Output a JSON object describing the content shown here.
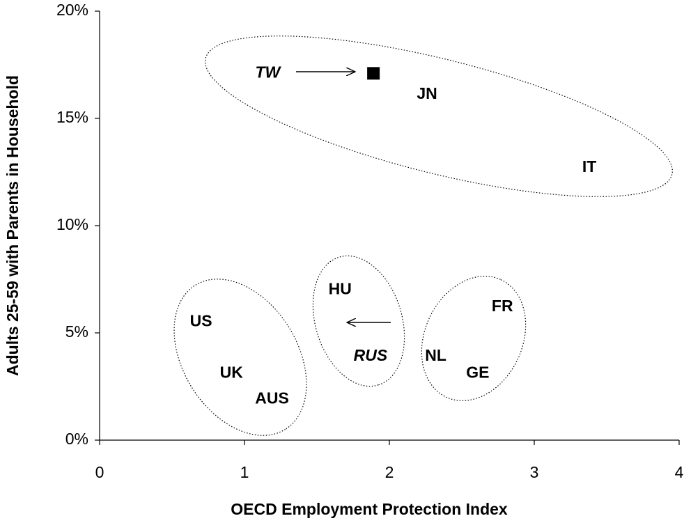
{
  "chart_data": {
    "type": "scatter",
    "xlabel": "OECD Employment Protection Index",
    "ylabel": "Adults 25-59 with Parents in Household",
    "xlim": [
      0,
      4
    ],
    "xticks": [
      0,
      1,
      2,
      3,
      4
    ],
    "ylim": [
      0,
      20
    ],
    "yticks": [
      {
        "value": 0,
        "label": "0%"
      },
      {
        "value": 5,
        "label": "5%"
      },
      {
        "value": 10,
        "label": "10%"
      },
      {
        "value": 15,
        "label": "15%"
      },
      {
        "value": 20,
        "label": "20%"
      }
    ],
    "labels": [
      "TW",
      "JN",
      "IT",
      "HU",
      "RUS",
      "US",
      "UK",
      "AUS",
      "FR",
      "NL",
      "GE"
    ],
    "italic": [
      true,
      false,
      false,
      false,
      true,
      false,
      false,
      false,
      false,
      false,
      false
    ],
    "x": [
      1.16,
      2.26,
      3.38,
      1.66,
      1.87,
      0.7,
      0.91,
      1.19,
      2.78,
      2.32,
      2.61
    ],
    "values": [
      17.1,
      16.1,
      12.7,
      7.0,
      3.9,
      5.5,
      3.1,
      1.9,
      6.2,
      3.9,
      3.1
    ],
    "marker_x": [
      1.89
    ],
    "marker_values": [
      17.1
    ],
    "color": "#000000"
  }
}
